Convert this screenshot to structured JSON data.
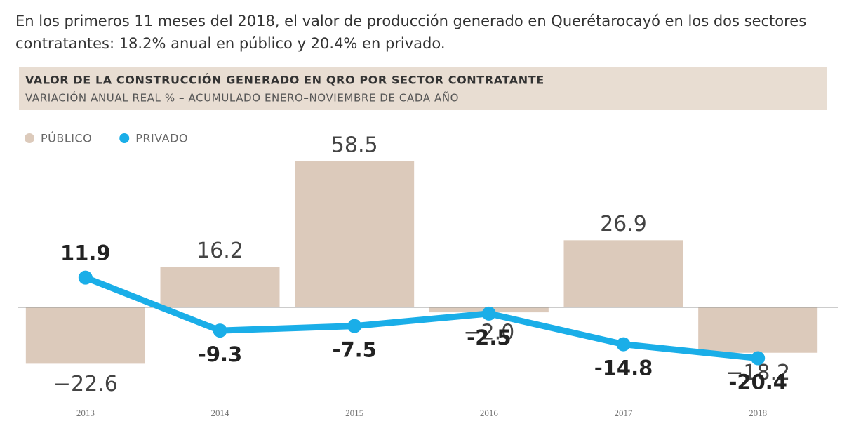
{
  "intro": "En los primeros 11 meses del 2018, el valor de producción generado en Querétarocayó en los dos sectores contratantes: 18.2% anual en público y 20.4% en privado.",
  "chart_data": {
    "type": "bar",
    "title": "VALOR DE LA CONSTRUCCIÓN GENERADO EN QRO POR SECTOR CONTRATANTE",
    "subtitle": "VARIACIÓN ANUAL REAL % – ACUMULADO ENERO–NOVIEMBRE DE CADA AÑO",
    "categories": [
      "2013",
      "2014",
      "2015",
      "2016",
      "2017",
      "2018"
    ],
    "ylim": [
      -30,
      60
    ],
    "series": [
      {
        "name": "PÚBLICO",
        "type": "bar",
        "color": "#dccabb",
        "values": [
          -22.6,
          16.2,
          58.5,
          -2.0,
          26.9,
          -18.2
        ],
        "value_labels": [
          "−22.6",
          "16.2",
          "58.5",
          "−2.0",
          "26.9",
          "−18.2"
        ]
      },
      {
        "name": "PRIVADO",
        "type": "line",
        "color": "#1aaee8",
        "values": [
          11.9,
          -9.3,
          -7.5,
          -2.5,
          -14.8,
          -20.4
        ],
        "value_labels": [
          "11.9",
          "-9.3",
          "-7.5",
          "-2.5",
          "-14.8",
          "-20.4"
        ]
      }
    ]
  }
}
